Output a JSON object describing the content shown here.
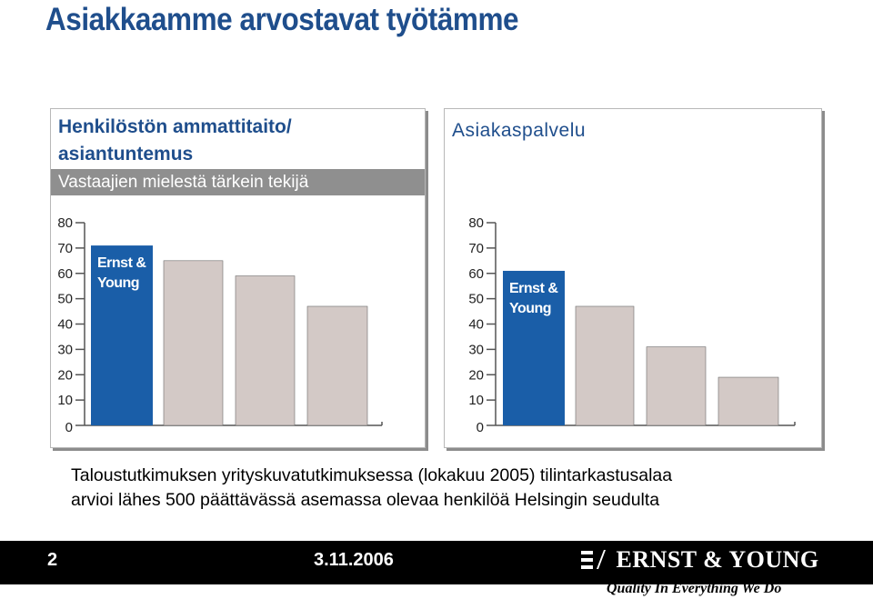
{
  "slide": {
    "title": "Asiakkaamme arvostavat työtämme"
  },
  "panels": [
    {
      "heading_line1": "Henkilöstön ammattitaito/",
      "heading_line2": "asiantuntemus",
      "subheading": "Vastaajien mielestä tärkein tekijä"
    },
    {
      "heading_line1": "Asiakaspalvelu"
    }
  ],
  "chart_data": [
    {
      "type": "bar",
      "title": "Henkilöstön ammattitaito/ asiantuntemus",
      "categories": [
        "Ernst & Young",
        "",
        "",
        ""
      ],
      "values": [
        71,
        65,
        59,
        47
      ],
      "ylim": [
        0,
        80
      ],
      "yticks": [
        "0",
        "10",
        "20",
        "30",
        "40",
        "50",
        "60",
        "70",
        "80"
      ],
      "highlight_label": "Ernst & Young",
      "colors": {
        "highlight": "#1a5ea8",
        "other": "#d3c9c6",
        "axis": "#555555"
      },
      "grid": false
    },
    {
      "type": "bar",
      "title": "Asiakaspalvelu",
      "categories": [
        "Ernst & Young",
        "",
        "",
        ""
      ],
      "values": [
        61,
        47,
        31,
        19
      ],
      "ylim": [
        0,
        80
      ],
      "yticks": [
        "0",
        "10",
        "20",
        "30",
        "40",
        "50",
        "60",
        "70",
        "80"
      ],
      "highlight_label": "Ernst & Young",
      "colors": {
        "highlight": "#1a5ea8",
        "other": "#d3c9c6",
        "axis": "#555555"
      },
      "grid": false
    }
  ],
  "caption": {
    "line1": "Taloustutkimuksen yrityskuvatutkimuksessa (lokakuu 2005) tilintarkastusalaa",
    "line2": "arvioi lähes 500 päättävässä asemassa olevaa henkilöä Helsingin seudulta"
  },
  "footer": {
    "page_number": "2",
    "date": "3.11.2006",
    "logo_text": "ERNST & YOUNG",
    "logo_icon": "ernst-young-logo-icon",
    "tagline": "Quality In Everything We Do"
  }
}
